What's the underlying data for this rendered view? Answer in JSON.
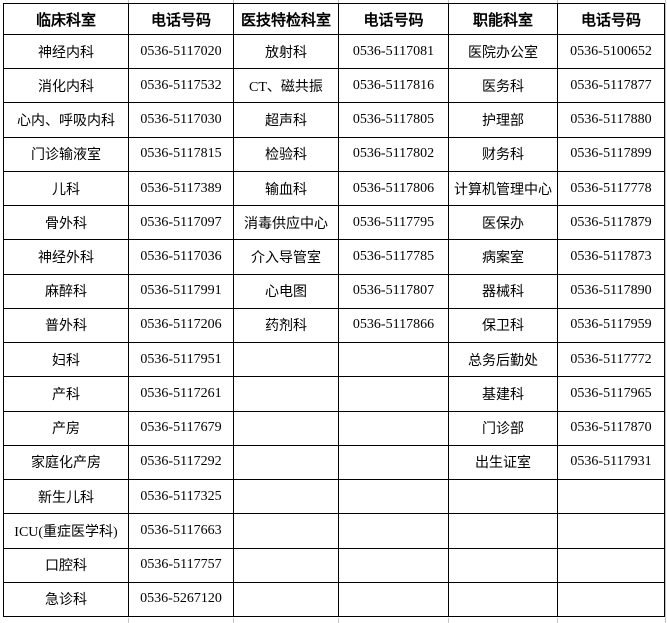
{
  "table": {
    "headers": [
      "临床科室",
      "电话号码",
      "医技特检科室",
      "电话号码",
      "职能科室",
      "电话号码"
    ],
    "rows": [
      [
        "神经内科",
        "0536-5117020",
        "放射科",
        "0536-5117081",
        "医院办公室",
        "0536-5100652"
      ],
      [
        "消化内科",
        "0536-5117532",
        "CT、磁共振",
        "0536-5117816",
        "医务科",
        "0536-5117877"
      ],
      [
        "心内、呼吸内科",
        "0536-5117030",
        "超声科",
        "0536-5117805",
        "护理部",
        "0536-5117880"
      ],
      [
        "门诊输液室",
        "0536-5117815",
        "检验科",
        "0536-5117802",
        "财务科",
        "0536-5117899"
      ],
      [
        "儿科",
        "0536-5117389",
        "输血科",
        "0536-5117806",
        "计算机管理中心",
        "0536-5117778"
      ],
      [
        "骨外科",
        "0536-5117097",
        "消毒供应中心",
        "0536-5117795",
        "医保办",
        "0536-5117879"
      ],
      [
        "神经外科",
        "0536-5117036",
        "介入导管室",
        "0536-5117785",
        "病案室",
        "0536-5117873"
      ],
      [
        "麻醉科",
        "0536-5117991",
        "心电图",
        "0536-5117807",
        "器械科",
        "0536-5117890"
      ],
      [
        "普外科",
        "0536-5117206",
        "药剂科",
        "0536-5117866",
        "保卫科",
        "0536-5117959"
      ],
      [
        "妇科",
        "0536-5117951",
        "",
        "",
        "总务后勤处",
        "0536-5117772"
      ],
      [
        "产科",
        "0536-5117261",
        "",
        "",
        "基建科",
        "0536-5117965"
      ],
      [
        "产房",
        "0536-5117679",
        "",
        "",
        "门诊部",
        "0536-5117870"
      ],
      [
        "家庭化产房",
        "0536-5117292",
        "",
        "",
        "出生证室",
        "0536-5117931"
      ],
      [
        "新生儿科",
        "0536-5117325",
        "",
        "",
        "",
        ""
      ],
      [
        "ICU(重症医学科)",
        "0536-5117663",
        "",
        "",
        "",
        ""
      ],
      [
        "口腔科",
        "0536-5117757",
        "",
        "",
        "",
        ""
      ],
      [
        "急诊科",
        "0536-5267120",
        "",
        "",
        "",
        ""
      ]
    ]
  },
  "colors": {
    "border": "#000000",
    "text": "#000000",
    "background": "#ffffff",
    "gridline_stub": "#c4c4c4"
  }
}
